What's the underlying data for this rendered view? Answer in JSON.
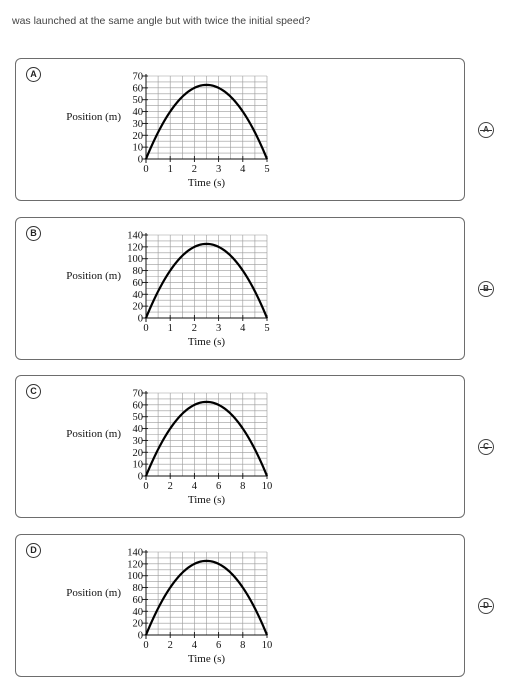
{
  "question": "was launched at the same angle but with twice the initial speed?",
  "options": [
    {
      "letter": "A",
      "ylabel": "Position (m)",
      "xlabel": "Time (s)",
      "yticks": [
        "70",
        "60",
        "50",
        "40",
        "30",
        "20",
        "10",
        "0"
      ],
      "xticks": [
        "0",
        "1",
        "2",
        "3",
        "4",
        "5"
      ],
      "chart_data": {
        "type": "line",
        "x": [
          0,
          1,
          2,
          2.5,
          3,
          4,
          5
        ],
        "y": [
          0,
          40,
          60,
          62.5,
          60,
          40,
          0
        ],
        "xlim": [
          0,
          5
        ],
        "ylim": [
          0,
          70
        ],
        "xlabel": "Time (s)",
        "ylabel": "Position (m)",
        "grid": true
      }
    },
    {
      "letter": "B",
      "ylabel": "Position (m)",
      "xlabel": "Time (s)",
      "yticks": [
        "140",
        "120",
        "100",
        "80",
        "60",
        "40",
        "20",
        "0"
      ],
      "xticks": [
        "0",
        "1",
        "2",
        "3",
        "4",
        "5"
      ],
      "chart_data": {
        "type": "line",
        "x": [
          0,
          1,
          2,
          2.5,
          3,
          4,
          5
        ],
        "y": [
          0,
          80,
          120,
          125,
          120,
          80,
          0
        ],
        "xlim": [
          0,
          5
        ],
        "ylim": [
          0,
          140
        ],
        "xlabel": "Time (s)",
        "ylabel": "Position (m)",
        "grid": true
      }
    },
    {
      "letter": "C",
      "ylabel": "Position (m)",
      "xlabel": "Time (s)",
      "yticks": [
        "70",
        "60",
        "50",
        "40",
        "30",
        "20",
        "10",
        "0"
      ],
      "xticks": [
        "0",
        "2",
        "4",
        "6",
        "8",
        "10"
      ],
      "chart_data": {
        "type": "line",
        "x": [
          0,
          2,
          4,
          5,
          6,
          8,
          10
        ],
        "y": [
          0,
          40,
          60,
          62.5,
          60,
          40,
          0
        ],
        "xlim": [
          0,
          10
        ],
        "ylim": [
          0,
          70
        ],
        "xlabel": "Time (s)",
        "ylabel": "Position (m)",
        "grid": true
      }
    },
    {
      "letter": "D",
      "ylabel": "Position (m)",
      "xlabel": "Time (s)",
      "yticks": [
        "140",
        "120",
        "100",
        "80",
        "60",
        "40",
        "20",
        "0"
      ],
      "xticks": [
        "0",
        "2",
        "4",
        "6",
        "8",
        "10"
      ],
      "chart_data": {
        "type": "line",
        "x": [
          0,
          2,
          4,
          5,
          6,
          8,
          10
        ],
        "y": [
          0,
          80,
          120,
          125,
          120,
          80,
          0
        ],
        "xlim": [
          0,
          10
        ],
        "ylim": [
          0,
          140
        ],
        "xlabel": "Time (s)",
        "ylabel": "Position (m)",
        "grid": true
      }
    }
  ]
}
